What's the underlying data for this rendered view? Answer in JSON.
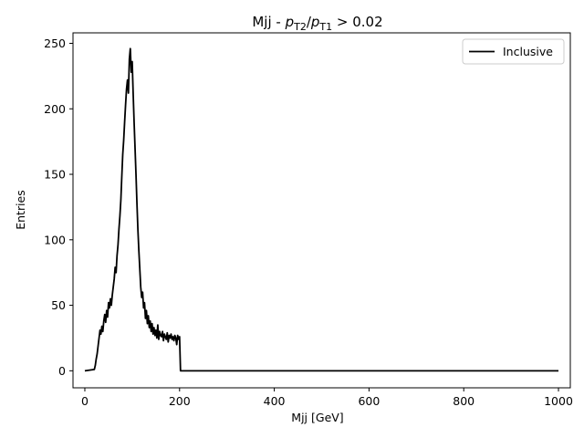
{
  "chart_data": {
    "type": "line",
    "title_main": "Mjj - ",
    "title_math": {
      "a": "p",
      "a_sub": "T2",
      "slash": "/",
      "b": "p",
      "b_sub": "T1",
      "rel": " > 0.02"
    },
    "xlabel": "Mjj [GeV]",
    "ylabel": "Entries",
    "xlim": [
      -25,
      1025
    ],
    "ylim": [
      -13,
      258
    ],
    "xticks": [
      0,
      200,
      400,
      600,
      800,
      1000
    ],
    "yticks": [
      0,
      50,
      100,
      150,
      200,
      250
    ],
    "legend_position": "top-right",
    "grid": false,
    "series": [
      {
        "name": "Inclusive",
        "color": "#000000",
        "x": [
          0,
          20,
          22,
          24,
          26,
          28,
          30,
          32,
          34,
          36,
          38,
          40,
          42,
          44,
          46,
          48,
          50,
          52,
          54,
          56,
          58,
          60,
          62,
          64,
          66,
          68,
          70,
          72,
          74,
          76,
          78,
          80,
          82,
          84,
          86,
          88,
          90,
          92,
          94,
          96,
          98,
          100,
          102,
          104,
          106,
          108,
          110,
          112,
          114,
          116,
          118,
          120,
          122,
          124,
          126,
          128,
          130,
          132,
          134,
          136,
          138,
          140,
          142,
          144,
          146,
          148,
          150,
          152,
          154,
          156,
          158,
          160,
          162,
          164,
          166,
          168,
          170,
          172,
          174,
          176,
          178,
          180,
          182,
          184,
          186,
          188,
          190,
          192,
          194,
          196,
          198,
          200,
          202,
          1000
        ],
        "y": [
          0,
          1,
          4,
          9,
          13,
          19,
          25,
          31,
          28,
          34,
          30,
          38,
          43,
          37,
          46,
          41,
          52,
          48,
          55,
          50,
          58,
          64,
          70,
          79,
          75,
          88,
          96,
          108,
          118,
          130,
          148,
          165,
          176,
          190,
          203,
          215,
          222,
          212,
          238,
          246,
          228,
          236,
          212,
          190,
          170,
          150,
          128,
          108,
          92,
          78,
          64,
          56,
          60,
          48,
          52,
          40,
          46,
          36,
          42,
          33,
          38,
          30,
          36,
          28,
          33,
          27,
          31,
          25,
          35,
          24,
          30,
          27,
          26,
          30,
          23,
          28,
          26,
          24,
          29,
          22,
          27,
          25,
          28,
          24,
          26,
          23,
          27,
          25,
          20,
          27,
          24,
          26,
          0,
          0
        ]
      }
    ]
  }
}
